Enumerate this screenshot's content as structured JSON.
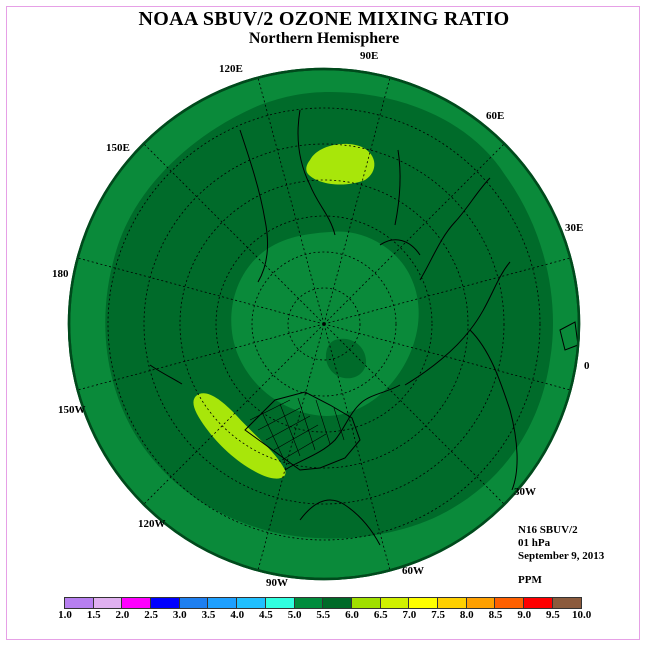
{
  "title": "NOAA SBUV/2 OZONE MIXING RATIO",
  "subtitle": "Northern Hemisphere",
  "info": {
    "satellite": "N16 SBUV/2",
    "level": "01 hPa",
    "date": "September 9, 2013",
    "units": "PPM"
  },
  "longitude_labels": [
    "90E",
    "60E",
    "30E",
    "0",
    "30W",
    "60W",
    "90W",
    "120W",
    "150W",
    "180",
    "150E",
    "120E"
  ],
  "colorbar": {
    "ticks": [
      "1.0",
      "1.5",
      "2.0",
      "2.5",
      "3.0",
      "3.5",
      "4.0",
      "4.5",
      "5.0",
      "5.5",
      "6.0",
      "6.5",
      "7.0",
      "7.5",
      "8.0",
      "8.5",
      "9.0",
      "9.5",
      "10.0"
    ],
    "colors": [
      "#b77ff0",
      "#e0b0f0",
      "#ff00ff",
      "#0000ff",
      "#1e7ff0",
      "#1ea0ff",
      "#20c0ff",
      "#30ffe0",
      "#008c3c",
      "#006a28",
      "#a0e000",
      "#d0f000",
      "#ffff00",
      "#ffd000",
      "#ffa000",
      "#ff6000",
      "#ff0000",
      "#8b5a3c"
    ]
  },
  "map_colors": {
    "band_5_0_to_5_5": "#0a8a3a",
    "band_5_5_to_6_0": "#006b2a",
    "band_6_0_to_6_5": "#a8e60a",
    "polar_core": "#0a8a3a",
    "coast": "#000000"
  }
}
